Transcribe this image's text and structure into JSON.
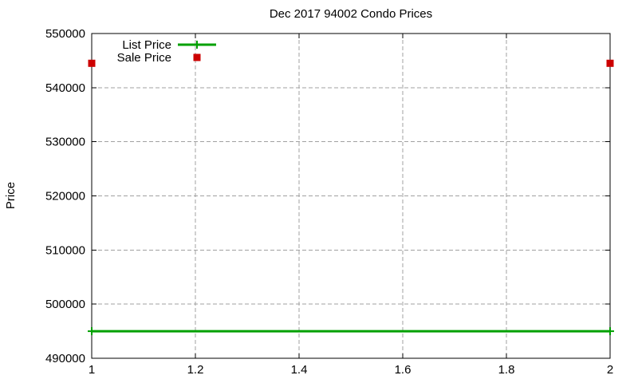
{
  "window": {
    "background": "#ffffff"
  },
  "chart_data": {
    "type": "line",
    "title": "Dec 2017 94002 Condo Prices",
    "xlabel": "",
    "ylabel": "Price",
    "xlim": [
      1,
      2
    ],
    "ylim": [
      490000,
      550000
    ],
    "x_ticks": [
      1,
      1.2,
      1.4,
      1.6,
      1.8,
      2
    ],
    "y_ticks": [
      490000,
      500000,
      510000,
      520000,
      530000,
      540000,
      550000
    ],
    "grid": true,
    "legend": {
      "position": "top-left-inside",
      "entries": [
        "List Price",
        "Sale Price"
      ]
    },
    "series": [
      {
        "name": "List Price",
        "render": "line-with-markers",
        "marker": "plus",
        "color": "#00a000",
        "x": [
          1,
          2
        ],
        "values": [
          495000,
          495000
        ]
      },
      {
        "name": "Sale Price",
        "render": "points",
        "marker": "filled-square",
        "color": "#cc0000",
        "x": [
          1,
          2
        ],
        "values": [
          544500,
          544500
        ]
      }
    ],
    "colors": {
      "grid": "#a0a0a0",
      "axis": "#000000",
      "text": "#000000"
    }
  }
}
